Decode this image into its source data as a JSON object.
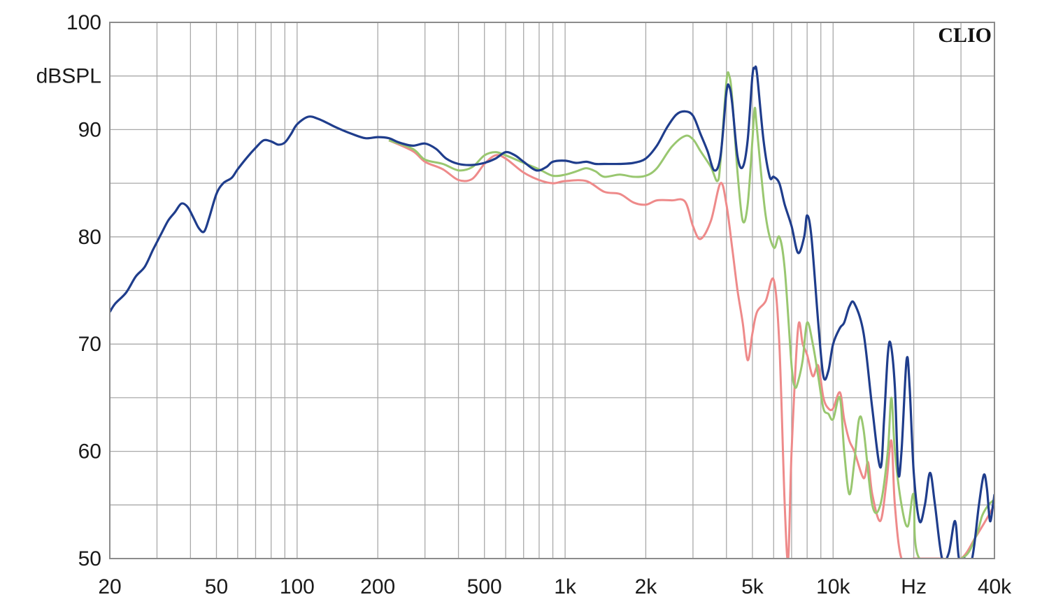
{
  "chart_data": {
    "type": "line",
    "brand": "CLIO",
    "ylabel": "dBSPL",
    "xlabel": "Hz",
    "xscale": "log",
    "xlim": [
      20,
      40000
    ],
    "ylim": [
      50,
      100
    ],
    "grid": true,
    "yticks": [
      {
        "value": 100,
        "label": "100"
      },
      {
        "value": 90,
        "label": "90"
      },
      {
        "value": 80,
        "label": "80"
      },
      {
        "value": 70,
        "label": "70"
      },
      {
        "value": 60,
        "label": "60"
      },
      {
        "value": 50,
        "label": "50"
      }
    ],
    "xticks": [
      {
        "value": 20,
        "label": "20"
      },
      {
        "value": 50,
        "label": "50"
      },
      {
        "value": 100,
        "label": "100"
      },
      {
        "value": 200,
        "label": "200"
      },
      {
        "value": 500,
        "label": "500"
      },
      {
        "value": 1000,
        "label": "1k"
      },
      {
        "value": 2000,
        "label": "2k"
      },
      {
        "value": 5000,
        "label": "5k"
      },
      {
        "value": 10000,
        "label": "10k"
      },
      {
        "value": 20000,
        "label": "Hz"
      },
      {
        "value": 40000,
        "label": "40k"
      }
    ],
    "series": [
      {
        "color": "#ee8a8a",
        "points": [
          [
            220,
            89
          ],
          [
            270,
            88
          ],
          [
            300,
            87
          ],
          [
            350,
            86.3
          ],
          [
            400,
            85.3
          ],
          [
            450,
            85.4
          ],
          [
            500,
            86.8
          ],
          [
            550,
            87.6
          ],
          [
            600,
            87.3
          ],
          [
            700,
            86
          ],
          [
            800,
            85.3
          ],
          [
            900,
            85
          ],
          [
            1000,
            85.2
          ],
          [
            1200,
            85.2
          ],
          [
            1400,
            84.2
          ],
          [
            1600,
            84
          ],
          [
            1800,
            83.2
          ],
          [
            2000,
            83
          ],
          [
            2200,
            83.4
          ],
          [
            2500,
            83.4
          ],
          [
            2800,
            83.3
          ],
          [
            3000,
            81
          ],
          [
            3200,
            79.8
          ],
          [
            3500,
            81.5
          ],
          [
            3800,
            85
          ],
          [
            4000,
            83
          ],
          [
            4200,
            79
          ],
          [
            4400,
            75
          ],
          [
            4600,
            72
          ],
          [
            4800,
            68.5
          ],
          [
            5000,
            71
          ],
          [
            5200,
            73
          ],
          [
            5600,
            74
          ],
          [
            6000,
            76
          ],
          [
            6300,
            70
          ],
          [
            6600,
            55
          ],
          [
            6800,
            50
          ],
          [
            7000,
            60
          ],
          [
            7400,
            71.5
          ],
          [
            7700,
            70
          ],
          [
            8000,
            69
          ],
          [
            8400,
            67
          ],
          [
            8800,
            68
          ],
          [
            9200,
            65
          ],
          [
            9600,
            64
          ],
          [
            10000,
            64
          ],
          [
            10600,
            65.5
          ],
          [
            11000,
            63
          ],
          [
            11500,
            61
          ],
          [
            12000,
            60
          ],
          [
            13000,
            57.5
          ],
          [
            13500,
            59
          ],
          [
            14000,
            56
          ],
          [
            15000,
            53.5
          ],
          [
            15800,
            57
          ],
          [
            16500,
            61
          ],
          [
            17000,
            55
          ],
          [
            18000,
            50
          ],
          [
            20000,
            50
          ],
          [
            25000,
            50
          ],
          [
            30000,
            50
          ],
          [
            34000,
            52
          ],
          [
            36000,
            53
          ],
          [
            38000,
            54
          ],
          [
            40000,
            55
          ]
        ]
      },
      {
        "color": "#99c770",
        "points": [
          [
            220,
            89
          ],
          [
            270,
            88.2
          ],
          [
            300,
            87.2
          ],
          [
            350,
            86.8
          ],
          [
            400,
            86.2
          ],
          [
            450,
            86.5
          ],
          [
            500,
            87.6
          ],
          [
            550,
            87.9
          ],
          [
            600,
            87.6
          ],
          [
            700,
            86.9
          ],
          [
            800,
            86.3
          ],
          [
            900,
            85.7
          ],
          [
            1000,
            85.8
          ],
          [
            1100,
            86.1
          ],
          [
            1200,
            86.4
          ],
          [
            1300,
            86.1
          ],
          [
            1400,
            85.6
          ],
          [
            1600,
            85.8
          ],
          [
            1800,
            85.6
          ],
          [
            2000,
            85.7
          ],
          [
            2200,
            86.4
          ],
          [
            2500,
            88.4
          ],
          [
            2800,
            89.4
          ],
          [
            3000,
            89.1
          ],
          [
            3200,
            88
          ],
          [
            3500,
            86.5
          ],
          [
            3700,
            85.2
          ],
          [
            3800,
            87
          ],
          [
            4000,
            94.5
          ],
          [
            4100,
            95
          ],
          [
            4200,
            93
          ],
          [
            4400,
            86
          ],
          [
            4600,
            81.5
          ],
          [
            4800,
            83
          ],
          [
            5000,
            89
          ],
          [
            5100,
            92
          ],
          [
            5200,
            90
          ],
          [
            5600,
            82
          ],
          [
            6000,
            79
          ],
          [
            6300,
            80
          ],
          [
            6600,
            77
          ],
          [
            7000,
            68
          ],
          [
            7200,
            66
          ],
          [
            7400,
            66.5
          ],
          [
            7700,
            68.5
          ],
          [
            8000,
            72
          ],
          [
            8400,
            70
          ],
          [
            8800,
            67
          ],
          [
            9200,
            64
          ],
          [
            9600,
            63.5
          ],
          [
            10000,
            63
          ],
          [
            10600,
            65
          ],
          [
            11000,
            60
          ],
          [
            11500,
            56
          ],
          [
            12000,
            59
          ],
          [
            12500,
            63
          ],
          [
            13000,
            62
          ],
          [
            14000,
            55
          ],
          [
            15000,
            55
          ],
          [
            16000,
            60
          ],
          [
            16500,
            65
          ],
          [
            17000,
            60
          ],
          [
            18000,
            55
          ],
          [
            19000,
            53
          ],
          [
            20000,
            56
          ],
          [
            21000,
            50
          ],
          [
            30000,
            50
          ],
          [
            34000,
            52
          ],
          [
            36000,
            54
          ],
          [
            38000,
            55
          ],
          [
            40000,
            55.5
          ]
        ]
      },
      {
        "color": "#1f3d8c",
        "points": [
          [
            20,
            73
          ],
          [
            21,
            73.8
          ],
          [
            23,
            74.8
          ],
          [
            25,
            76.3
          ],
          [
            27,
            77.2
          ],
          [
            29,
            78.8
          ],
          [
            31,
            80.2
          ],
          [
            33,
            81.5
          ],
          [
            35,
            82.3
          ],
          [
            37,
            83.1
          ],
          [
            39,
            82.8
          ],
          [
            41,
            81.8
          ],
          [
            43,
            80.8
          ],
          [
            45,
            80.5
          ],
          [
            47,
            81.8
          ],
          [
            50,
            84
          ],
          [
            53,
            85
          ],
          [
            57,
            85.5
          ],
          [
            60,
            86.3
          ],
          [
            65,
            87.4
          ],
          [
            70,
            88.3
          ],
          [
            75,
            89
          ],
          [
            80,
            88.9
          ],
          [
            85,
            88.6
          ],
          [
            90,
            88.8
          ],
          [
            95,
            89.6
          ],
          [
            100,
            90.5
          ],
          [
            110,
            91.2
          ],
          [
            120,
            91
          ],
          [
            130,
            90.6
          ],
          [
            140,
            90.2
          ],
          [
            160,
            89.6
          ],
          [
            180,
            89.2
          ],
          [
            200,
            89.3
          ],
          [
            220,
            89.2
          ],
          [
            240,
            88.8
          ],
          [
            270,
            88.5
          ],
          [
            300,
            88.7
          ],
          [
            330,
            88.2
          ],
          [
            360,
            87.3
          ],
          [
            400,
            86.8
          ],
          [
            450,
            86.7
          ],
          [
            500,
            86.9
          ],
          [
            550,
            87.3
          ],
          [
            600,
            87.9
          ],
          [
            650,
            87.6
          ],
          [
            700,
            87
          ],
          [
            780,
            86.2
          ],
          [
            850,
            86.5
          ],
          [
            900,
            87
          ],
          [
            1000,
            87.1
          ],
          [
            1100,
            86.9
          ],
          [
            1200,
            87
          ],
          [
            1300,
            86.8
          ],
          [
            1400,
            86.8
          ],
          [
            1600,
            86.8
          ],
          [
            1800,
            86.9
          ],
          [
            2000,
            87.3
          ],
          [
            2200,
            88.5
          ],
          [
            2400,
            90.2
          ],
          [
            2600,
            91.4
          ],
          [
            2800,
            91.7
          ],
          [
            3000,
            91.3
          ],
          [
            3200,
            89.6
          ],
          [
            3400,
            88
          ],
          [
            3600,
            86.2
          ],
          [
            3800,
            87.5
          ],
          [
            4000,
            93.5
          ],
          [
            4100,
            94
          ],
          [
            4200,
            92.5
          ],
          [
            4400,
            87.5
          ],
          [
            4600,
            86.5
          ],
          [
            4800,
            89
          ],
          [
            5000,
            95
          ],
          [
            5100,
            95.7
          ],
          [
            5200,
            95.2
          ],
          [
            5500,
            89
          ],
          [
            5800,
            85.6
          ],
          [
            6000,
            85.6
          ],
          [
            6300,
            85
          ],
          [
            6600,
            83
          ],
          [
            7000,
            81
          ],
          [
            7400,
            78.5
          ],
          [
            7800,
            80
          ],
          [
            8000,
            82
          ],
          [
            8300,
            80
          ],
          [
            8800,
            72
          ],
          [
            9200,
            67
          ],
          [
            9600,
            67.5
          ],
          [
            10000,
            70
          ],
          [
            10600,
            71.5
          ],
          [
            11000,
            72
          ],
          [
            11500,
            73.5
          ],
          [
            12000,
            73.8
          ],
          [
            13000,
            71
          ],
          [
            14000,
            64
          ],
          [
            15000,
            58.5
          ],
          [
            15500,
            63
          ],
          [
            16000,
            69
          ],
          [
            16400,
            70
          ],
          [
            17000,
            66
          ],
          [
            17500,
            58
          ],
          [
            18000,
            60
          ],
          [
            18800,
            68.5
          ],
          [
            19300,
            66
          ],
          [
            20000,
            58
          ],
          [
            21000,
            53.5
          ],
          [
            22000,
            55
          ],
          [
            23000,
            58
          ],
          [
            24000,
            55
          ],
          [
            25500,
            50
          ],
          [
            27000,
            50.5
          ],
          [
            28500,
            53.5
          ],
          [
            29500,
            50
          ],
          [
            31000,
            50
          ],
          [
            33000,
            50
          ],
          [
            35000,
            55
          ],
          [
            36500,
            57.8
          ],
          [
            37500,
            56.5
          ],
          [
            38500,
            53.5
          ],
          [
            39500,
            55
          ],
          [
            40000,
            56
          ]
        ]
      }
    ]
  }
}
